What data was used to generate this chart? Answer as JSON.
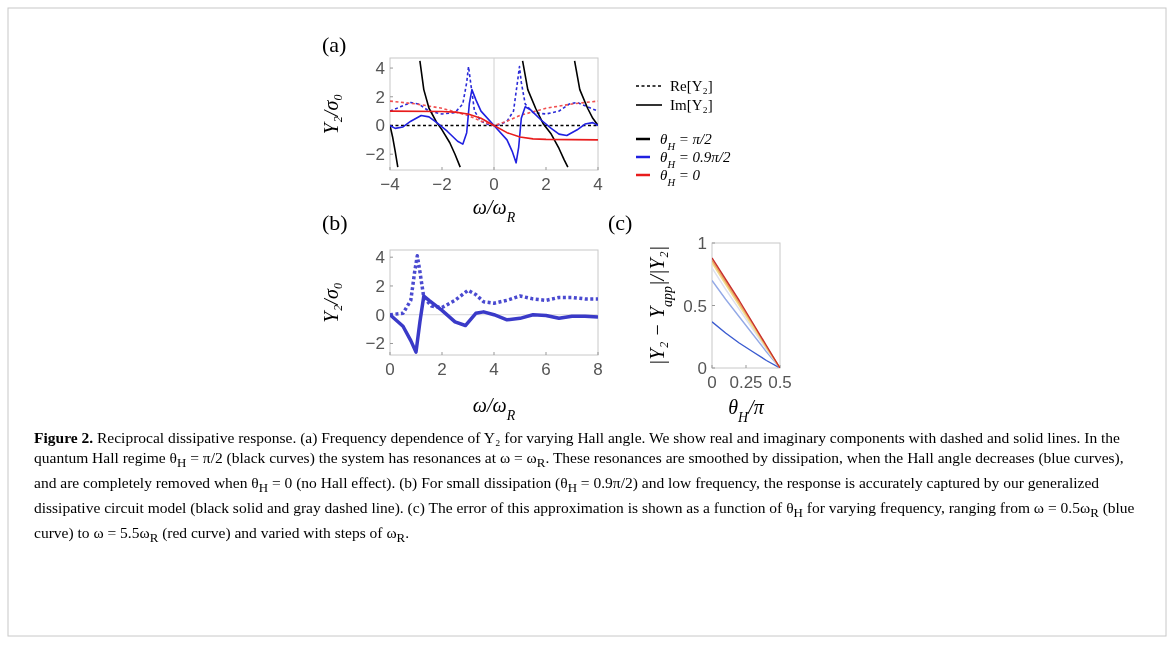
{
  "chart_data": [
    {
      "type": "line",
      "title": "(a)",
      "xlabel": "ω/ω$_{R}$",
      "ylabel": "Y₂/σ₀",
      "xlim": [
        -4,
        4
      ],
      "ylim": [
        -3.1,
        4.7
      ],
      "xticks": [
        -4,
        -2,
        0,
        2,
        4
      ],
      "yticks": [
        -2,
        0,
        2,
        4
      ],
      "legend": "right",
      "annotations": [
        "Im[Y₂]"
      ],
      "ref_lines": [
        {
          "axis": "x",
          "value": 0,
          "color": "#d0d0d0"
        }
      ],
      "series": [
        {
          "name": "Re[Y₂]",
          "color": "#000000",
          "line_style": "dashed",
          "x": [
            -4,
            4
          ],
          "values": [
            0,
            0
          ]
        },
        {
          "color": "#2a2ad8",
          "line_style": "dashed",
          "x": [
            -4,
            -3.6,
            -3.2,
            -2.9,
            -2.5,
            -2,
            -1.5,
            -1.2,
            -1.05,
            -0.98,
            -0.9,
            -0.75,
            -0.5,
            -0.2,
            0,
            0.2,
            0.5,
            0.75,
            0.9,
            0.98,
            1.05,
            1.2,
            1.5,
            2,
            2.5,
            2.9,
            3.2,
            3.6,
            4
          ],
          "values": [
            1,
            1.3,
            1.6,
            1.5,
            1,
            0.8,
            0.9,
            1.5,
            3,
            4.1,
            3,
            1,
            0.3,
            0.05,
            0,
            0.05,
            0.3,
            1,
            3,
            4.1,
            3,
            1.5,
            0.9,
            0.8,
            1,
            1.5,
            1.6,
            1.3,
            1
          ]
        },
        {
          "color": "#f05050",
          "line_style": "dashed",
          "x": [
            -4,
            -3,
            -2,
            -1,
            -0.5,
            0,
            0.5,
            1,
            2,
            3,
            4
          ],
          "values": [
            1.7,
            1.5,
            1.2,
            0.7,
            0.3,
            0,
            0.3,
            0.7,
            1.2,
            1.5,
            1.7
          ]
        },
        {
          "name": "θ$_{H}$ = π/2",
          "color": "#000000",
          "line_style": "solid",
          "x": [
            -4,
            -3.9,
            -3.8,
            -3.7,
            -3.6,
            -2.85,
            -2.7,
            -2.5,
            -2.2,
            -2,
            -1.7,
            -1.5,
            -1.3,
            0,
            1.1,
            1.3,
            1.6,
            1.9,
            2.2,
            2.5,
            2.7,
            2.84,
            3,
            3.1,
            3.3,
            3.6,
            3.8,
            4
          ],
          "values": [
            0,
            -0.8,
            -1.8,
            -2.9,
            null,
            4.5,
            2.5,
            1.2,
            0.2,
            -0.3,
            -1.2,
            -2,
            -2.9,
            null,
            4.5,
            2.5,
            1.2,
            0.1,
            -0.6,
            -1.6,
            -2.4,
            -2.9,
            null,
            4.5,
            2.5,
            1.2,
            0.5,
            0
          ]
        },
        {
          "name": "θ$_{H}$ = 0.9π/2",
          "color": "#2020e0",
          "line_style": "solid",
          "x": [
            -4,
            -3.8,
            -3.5,
            -3.2,
            -2.8,
            -2.5,
            -2.2,
            -1.8,
            -1.4,
            -1.2,
            -1.05,
            -0.95,
            -0.85,
            -0.7,
            -0.5,
            0,
            0.5,
            0.7,
            0.85,
            0.95,
            1.05,
            1.2,
            1.4,
            1.8,
            2.2,
            2.5,
            2.8,
            3.2,
            3.5,
            3.8,
            4
          ],
          "values": [
            0,
            -0.2,
            -0.1,
            0.3,
            0.7,
            0.6,
            0.2,
            -0.4,
            -1.1,
            -1.3,
            -0.5,
            1.5,
            2.5,
            1.8,
            1,
            0,
            -1,
            -1.8,
            -2.6,
            -1.5,
            0.5,
            1.3,
            1.1,
            0.4,
            -0.2,
            -0.6,
            -0.7,
            -0.3,
            0.1,
            0.2,
            0
          ]
        },
        {
          "name": "θ$_{H}$ = 0",
          "color": "#e81c1c",
          "line_style": "solid",
          "x": [
            -4,
            -2,
            -1.5,
            -1,
            -0.5,
            0,
            0.5,
            1,
            1.5,
            2,
            4
          ],
          "values": [
            1,
            0.97,
            0.93,
            0.8,
            0.5,
            0,
            -0.5,
            -0.8,
            -0.93,
            -0.97,
            -1
          ]
        }
      ]
    },
    {
      "type": "line",
      "title": "(b)",
      "xlabel": "ω/ω$_{R}$",
      "ylabel": "Y₂/σ₀",
      "xlim": [
        0,
        8
      ],
      "ylim": [
        -2.8,
        4.5
      ],
      "xticks": [
        0,
        2,
        4,
        6,
        8
      ],
      "yticks": [
        -2,
        0,
        2,
        4
      ],
      "ref_lines": [
        {
          "axis": "y",
          "value": 0,
          "color": "#d8d8d8"
        }
      ],
      "series": [
        {
          "color": "#4a4ad0",
          "line_style": "dashed",
          "x": [
            0,
            0.5,
            0.8,
            0.95,
            1.05,
            1.15,
            1.3,
            1.6,
            2,
            2.5,
            3,
            3.3,
            3.6,
            4,
            4.5,
            5,
            5.5,
            6,
            6.5,
            7,
            7.5,
            8
          ],
          "values": [
            0,
            0.1,
            1,
            3,
            4.1,
            3,
            1.2,
            0.6,
            0.5,
            1,
            1.7,
            1.4,
            0.9,
            0.8,
            1,
            1.3,
            1.1,
            1,
            1.2,
            1.2,
            1.1,
            1.1
          ]
        },
        {
          "color": "#3a3ac8",
          "line_style": "solid",
          "x": [
            0,
            0.5,
            0.8,
            1,
            1.15,
            1.3,
            1.5,
            2,
            2.5,
            2.9,
            3.3,
            3.6,
            4,
            4.5,
            5,
            5.5,
            6,
            6.5,
            7,
            7.5,
            8
          ],
          "values": [
            0,
            -0.8,
            -1.8,
            -2.6,
            -0.5,
            1.3,
            1,
            0.3,
            -0.5,
            -0.75,
            0.1,
            0.2,
            0,
            -0.35,
            -0.25,
            0,
            -0.05,
            -0.25,
            -0.1,
            -0.1,
            -0.15
          ]
        }
      ]
    },
    {
      "type": "line",
      "title": "(c)",
      "xlabel": "θ$_{H}$/π",
      "ylabel": "|Y₂ − Y$_{app}$|/|Y₂|",
      "xlim": [
        0,
        0.5
      ],
      "ylim": [
        0,
        1
      ],
      "xticks": [
        0,
        0.25,
        0.5
      ],
      "yticks": [
        0,
        0.5,
        1
      ],
      "annotations": [
        "Figure 2.",
        "Reciprocal dissipative response. (a) Frequency dependence of Y₂ for varying Hall angle. We show real and imaginary components with dashed and solid lines. In the quantum Hall regime θ$_{H}$ = π/2 (black curves) the system has resonances at ω = ω$_{R}$. These resonances are smoothed by dissipation, when the Hall angle decreases (blue curves), and are completely removed when θ$_{H}$ = 0 (no Hall effect). (b) For small dissipation (θ$_{H}$ = 0.9π/2) and low frequency, the response is accurately captured by our generalized dissipative circuit model (black solid and gray dashed line). (c) The error of this approximation is shown as a function of θ$_{H}$ for varying frequency, ranging from ω = 0.5ω$_{R}$ (blue curve) to ω = 5.5ω$_{R}$ (red curve) and varied with steps of ω$_{R}$."
      ],
      "series": [
        {
          "color": "#3a5bd0",
          "line_style": "solid",
          "x": [
            0,
            0.1,
            0.2,
            0.3,
            0.4,
            0.5
          ],
          "values": [
            0.37,
            0.28,
            0.2,
            0.13,
            0.06,
            0
          ]
        },
        {
          "color": "#93a9e6",
          "line_style": "solid",
          "x": [
            0,
            0.1,
            0.2,
            0.3,
            0.4,
            0.5
          ],
          "values": [
            0.7,
            0.55,
            0.41,
            0.27,
            0.13,
            0
          ]
        },
        {
          "color": "#dde0ef",
          "line_style": "solid",
          "x": [
            0,
            0.1,
            0.2,
            0.3,
            0.4,
            0.5
          ],
          "values": [
            0.8,
            0.63,
            0.47,
            0.31,
            0.15,
            0
          ]
        },
        {
          "color": "#f2dc8c",
          "line_style": "solid",
          "x": [
            0,
            0.1,
            0.2,
            0.3,
            0.4,
            0.5
          ],
          "values": [
            0.84,
            0.67,
            0.5,
            0.33,
            0.16,
            0
          ]
        },
        {
          "color": "#eaa55a",
          "line_style": "solid",
          "x": [
            0,
            0.1,
            0.2,
            0.3,
            0.4,
            0.5
          ],
          "values": [
            0.86,
            0.69,
            0.52,
            0.35,
            0.17,
            0
          ]
        },
        {
          "color": "#c8302c",
          "line_style": "solid",
          "x": [
            0,
            0.1,
            0.2,
            0.3,
            0.4,
            0.5
          ],
          "values": [
            0.88,
            0.71,
            0.54,
            0.36,
            0.18,
            0
          ]
        }
      ]
    }
  ]
}
